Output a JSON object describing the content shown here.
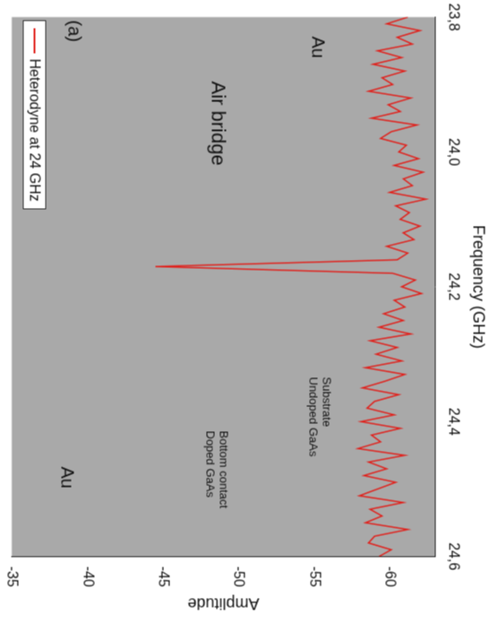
{
  "chart_data": {
    "type": "line",
    "x": [
      23.8,
      23.81,
      23.82,
      23.83,
      23.84,
      23.85,
      23.86,
      23.87,
      23.88,
      23.89,
      23.9,
      23.91,
      23.92,
      23.93,
      23.94,
      23.95,
      23.96,
      23.97,
      23.98,
      23.99,
      24.0,
      24.01,
      24.02,
      24.03,
      24.04,
      24.05,
      24.06,
      24.07,
      24.08,
      24.09,
      24.1,
      24.11,
      24.12,
      24.13,
      24.14,
      24.15,
      24.16,
      24.17,
      24.18,
      24.19,
      24.2,
      24.21,
      24.22,
      24.23,
      24.24,
      24.25,
      24.26,
      24.27,
      24.28,
      24.29,
      24.3,
      24.31,
      24.32,
      24.33,
      24.34,
      24.35,
      24.36,
      24.37,
      24.38,
      24.39,
      24.4,
      24.41,
      24.42,
      24.43,
      24.44,
      24.45,
      24.46,
      24.47,
      24.48,
      24.49,
      24.5,
      24.51,
      24.52,
      24.53,
      24.54,
      24.55,
      24.56,
      24.57,
      24.58,
      24.59,
      24.6
    ],
    "series": [
      {
        "name": "Heterodyne at 24 GHz",
        "color": "#e0201b",
        "values": [
          -61.2,
          -59.8,
          -62.0,
          -60.5,
          -61.5,
          -59.2,
          -60.8,
          -58.9,
          -61.0,
          -59.5,
          -60.2,
          -58.6,
          -61.4,
          -59.9,
          -60.7,
          -58.8,
          -61.8,
          -60.1,
          -59.4,
          -61.1,
          -60.6,
          -61.9,
          -60.3,
          -62.2,
          -60.9,
          -61.5,
          -60.0,
          -62.4,
          -60.4,
          -61.3,
          -60.7,
          -62.0,
          -60.9,
          -61.6,
          -59.8,
          -61.2,
          -60.5,
          -44.5,
          -60.2,
          -61.7,
          -60.8,
          -62.1,
          -60.3,
          -61.0,
          -59.6,
          -60.9,
          -59.3,
          -61.4,
          -58.7,
          -60.5,
          -59.1,
          -60.8,
          -58.4,
          -61.0,
          -59.7,
          -58.2,
          -60.6,
          -59.0,
          -58.5,
          -60.3,
          -58.1,
          -60.7,
          -58.8,
          -59.4,
          -57.9,
          -61.0,
          -58.6,
          -59.8,
          -58.3,
          -60.4,
          -59.2,
          -58.0,
          -60.9,
          -58.7,
          -59.5,
          -58.4,
          -61.2,
          -59.0,
          -58.6,
          -60.1,
          -59.3
        ]
      }
    ],
    "x_label": "Frequency (GHz)",
    "y_label": "Amplitude",
    "xlim": [
      23.8,
      24.6
    ],
    "xticks": [
      {
        "value": 23.8,
        "label": "23,8"
      },
      {
        "value": 24.0,
        "label": "24,0"
      },
      {
        "value": 24.2,
        "label": "24,2"
      },
      {
        "value": 24.4,
        "label": "24,4"
      },
      {
        "value": 24.6,
        "label": "24,6"
      }
    ],
    "ylim": [
      -63,
      -35
    ],
    "yticks": [
      -60,
      -55,
      -50,
      -45,
      -40,
      -35
    ],
    "grid": false,
    "legend": "upper left",
    "panel_label": "(a)",
    "annotations": [
      "Air bridge",
      "Au",
      "Au",
      "Bottom contact\nDoped GaAs",
      "Substrate\nUndoped GaAs"
    ]
  }
}
